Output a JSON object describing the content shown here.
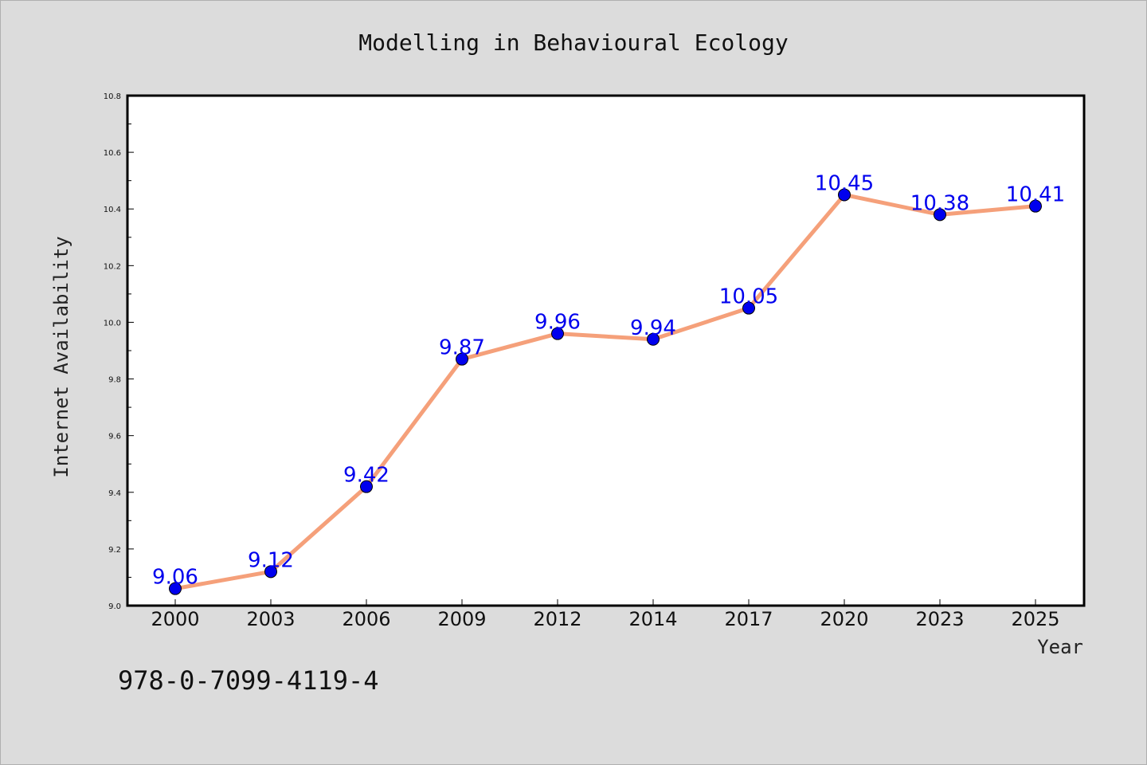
{
  "chart_data": {
    "type": "line",
    "title": "Modelling in Behavioural Ecology",
    "xlabel": "Year",
    "ylabel": "Internet Availability",
    "categories": [
      "2000",
      "2003",
      "2006",
      "2009",
      "2012",
      "2014",
      "2017",
      "2020",
      "2023",
      "2025"
    ],
    "series": [
      {
        "values": [
          9.06,
          9.12,
          9.42,
          9.87,
          9.96,
          9.94,
          10.05,
          10.45,
          10.38,
          10.41
        ],
        "labels": [
          "9.06",
          "9.12",
          "9.42",
          "9.87",
          "9.96",
          "9.94",
          "10.05",
          "10.45",
          "10.38",
          "10.41"
        ],
        "line_color": "#f5a07a",
        "marker_color": "#0000ee"
      }
    ],
    "ylim": [
      9.0,
      10.8
    ],
    "yticks": [
      "9.0",
      "9.2",
      "9.4",
      "9.6",
      "9.8",
      "10.0",
      "10.2",
      "10.4",
      "10.6",
      "10.8"
    ],
    "grid": false,
    "label_color": "#0000ee"
  },
  "footer": {
    "isbn": "978-0-7099-4119-4"
  }
}
